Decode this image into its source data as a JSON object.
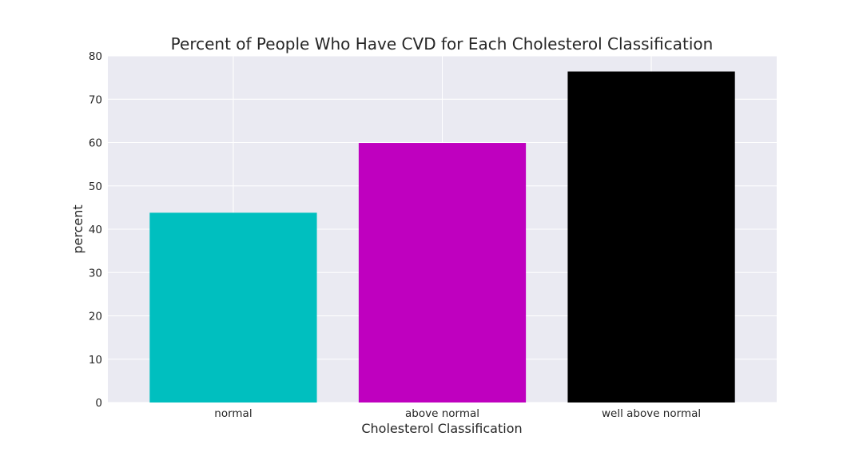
{
  "chart_data": {
    "type": "bar",
    "title": "Percent of People Who Have CVD for Each Cholesterol Classification",
    "xlabel": "Cholesterol Classification",
    "ylabel": "percent",
    "categories": [
      "normal",
      "above normal",
      "well above normal"
    ],
    "values": [
      43.8,
      59.9,
      76.4
    ],
    "bar_colors": [
      "#00bfbf",
      "#bf00bf",
      "#000000"
    ],
    "ylim": [
      0,
      80
    ],
    "yticks": [
      0,
      10,
      20,
      30,
      40,
      50,
      60,
      70,
      80
    ],
    "grid": true,
    "style": {
      "plot_background": "#eaeaf2",
      "grid_color": "#ffffff",
      "text_color": "#262626"
    }
  }
}
